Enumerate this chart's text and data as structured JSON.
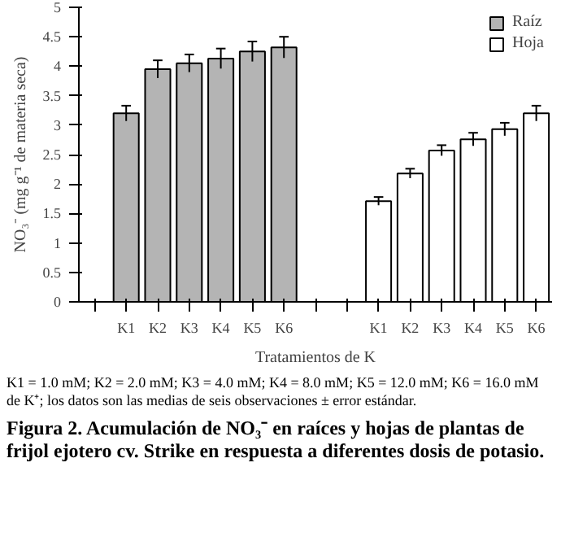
{
  "chart_data": {
    "type": "bar",
    "title": "Figura 2. Acumulación de NO₃⁻ en raíces y hojas de plantas de frijol ejotero cv. Strike en respuesta a diferentes dosis de potasio.",
    "xlabel": "Tratamientos de K",
    "ylabel": "NO₃⁻ (mg g⁻¹ de materia seca)",
    "categories": [
      null,
      "K1",
      "K2",
      "K3",
      "K4",
      "K5",
      "K6",
      null,
      null,
      "K1",
      "K2",
      "K3",
      "K4",
      "K5",
      "K6"
    ],
    "series": [
      {
        "name": "Raíz",
        "color": "#b4b4b4",
        "values": [
          null,
          3.2,
          3.95,
          4.05,
          4.13,
          4.25,
          4.32,
          null,
          null,
          null,
          null,
          null,
          null,
          null,
          null
        ],
        "errors": [
          null,
          0.13,
          0.15,
          0.15,
          0.17,
          0.17,
          0.18,
          null,
          null,
          null,
          null,
          null,
          null,
          null,
          null
        ]
      },
      {
        "name": "Hoja",
        "color": "#ffffff",
        "values": [
          null,
          null,
          null,
          null,
          null,
          null,
          null,
          null,
          null,
          1.71,
          2.18,
          2.57,
          2.76,
          2.93,
          3.2
        ],
        "errors": [
          null,
          null,
          null,
          null,
          null,
          null,
          null,
          null,
          null,
          0.07,
          0.08,
          0.09,
          0.11,
          0.11,
          0.13
        ]
      }
    ],
    "ylim": [
      0,
      5
    ],
    "yticks": [
      0,
      0.5,
      1,
      1.5,
      2,
      2.5,
      3,
      3.5,
      4,
      4.5,
      5
    ],
    "grid": false,
    "legend": "top right",
    "annotations": [
      "K1 = 1.0 mM; K2 = 2.0 mM; K3 = 4.0 mM; K4 = 8.0 mM; K5 = 12.0 mM; K6 = 16.0 mM de K⁺; los datos son las medias de seis observaciones ± error estándar."
    ]
  }
}
